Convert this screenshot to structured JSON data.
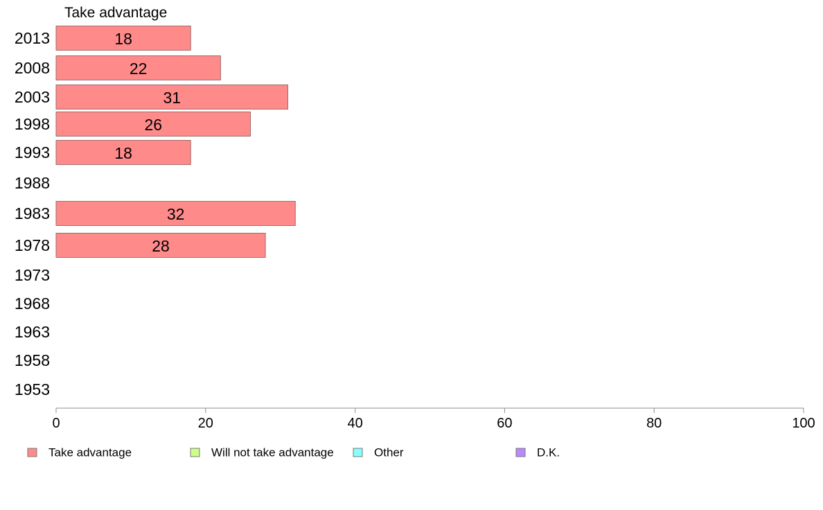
{
  "chart_data": {
    "type": "bar",
    "orientation": "horizontal",
    "panel_title": "Take advantage",
    "categories": [
      "2013",
      "2008",
      "2003",
      "1998",
      "1993",
      "1988",
      "1983",
      "1978",
      "1973",
      "1968",
      "1963",
      "1958",
      "1953"
    ],
    "series": [
      {
        "name": "Take advantage",
        "color": "#ff8a8a",
        "values": [
          18,
          22,
          31,
          26,
          18,
          null,
          32,
          28,
          null,
          null,
          null,
          null,
          null
        ]
      }
    ],
    "xlim": [
      0,
      100
    ],
    "xticks": [
      "0",
      "20",
      "40",
      "60",
      "80",
      "100"
    ],
    "grid": false,
    "legend_position": "bottom",
    "legend": [
      {
        "label": "Take advantage",
        "color": "#ff8a8a"
      },
      {
        "label": "Will not take advantage",
        "color": "#ccff88"
      },
      {
        "label": "Other",
        "color": "#88ffff"
      },
      {
        "label": "D.K.",
        "color": "#bb88ff"
      }
    ]
  }
}
